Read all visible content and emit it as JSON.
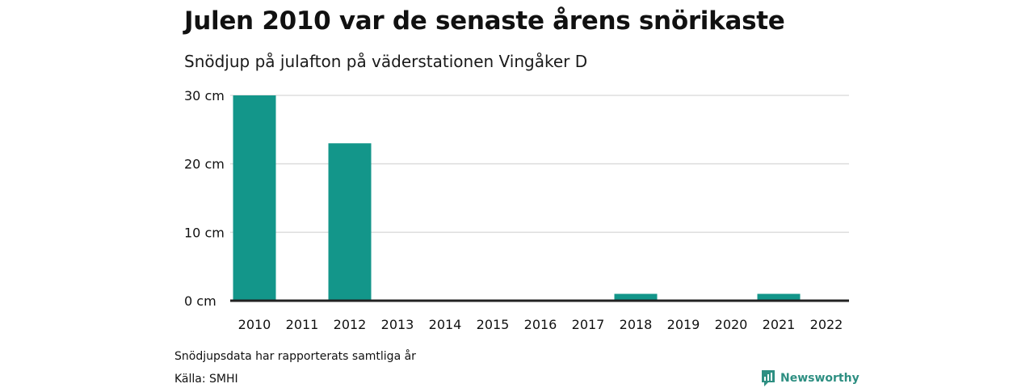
{
  "chart_data": {
    "type": "bar",
    "title": "Julen 2010 var de senaste årens snörikaste",
    "subtitle": "Snödjup på julafton på väderstationen Vingåker D",
    "categories": [
      "2010",
      "2011",
      "2012",
      "2013",
      "2014",
      "2015",
      "2016",
      "2017",
      "2018",
      "2019",
      "2020",
      "2021",
      "2022"
    ],
    "values": [
      30,
      0,
      23,
      0,
      0,
      0,
      0,
      0,
      1,
      0,
      0,
      1,
      0
    ],
    "unit": "cm",
    "ylim": [
      0,
      30
    ],
    "yticks": [
      0,
      10,
      20,
      30
    ],
    "ytick_labels": [
      "0 cm",
      "10 cm",
      "20 cm",
      "30 cm"
    ],
    "grid": true,
    "bar_color": "#13968a"
  },
  "footer": {
    "note": "Snödjupsdata har rapporterats samtliga år",
    "source": "Källa: SMHI",
    "brand": "Newsworthy",
    "brand_color": "#2e8f82"
  }
}
